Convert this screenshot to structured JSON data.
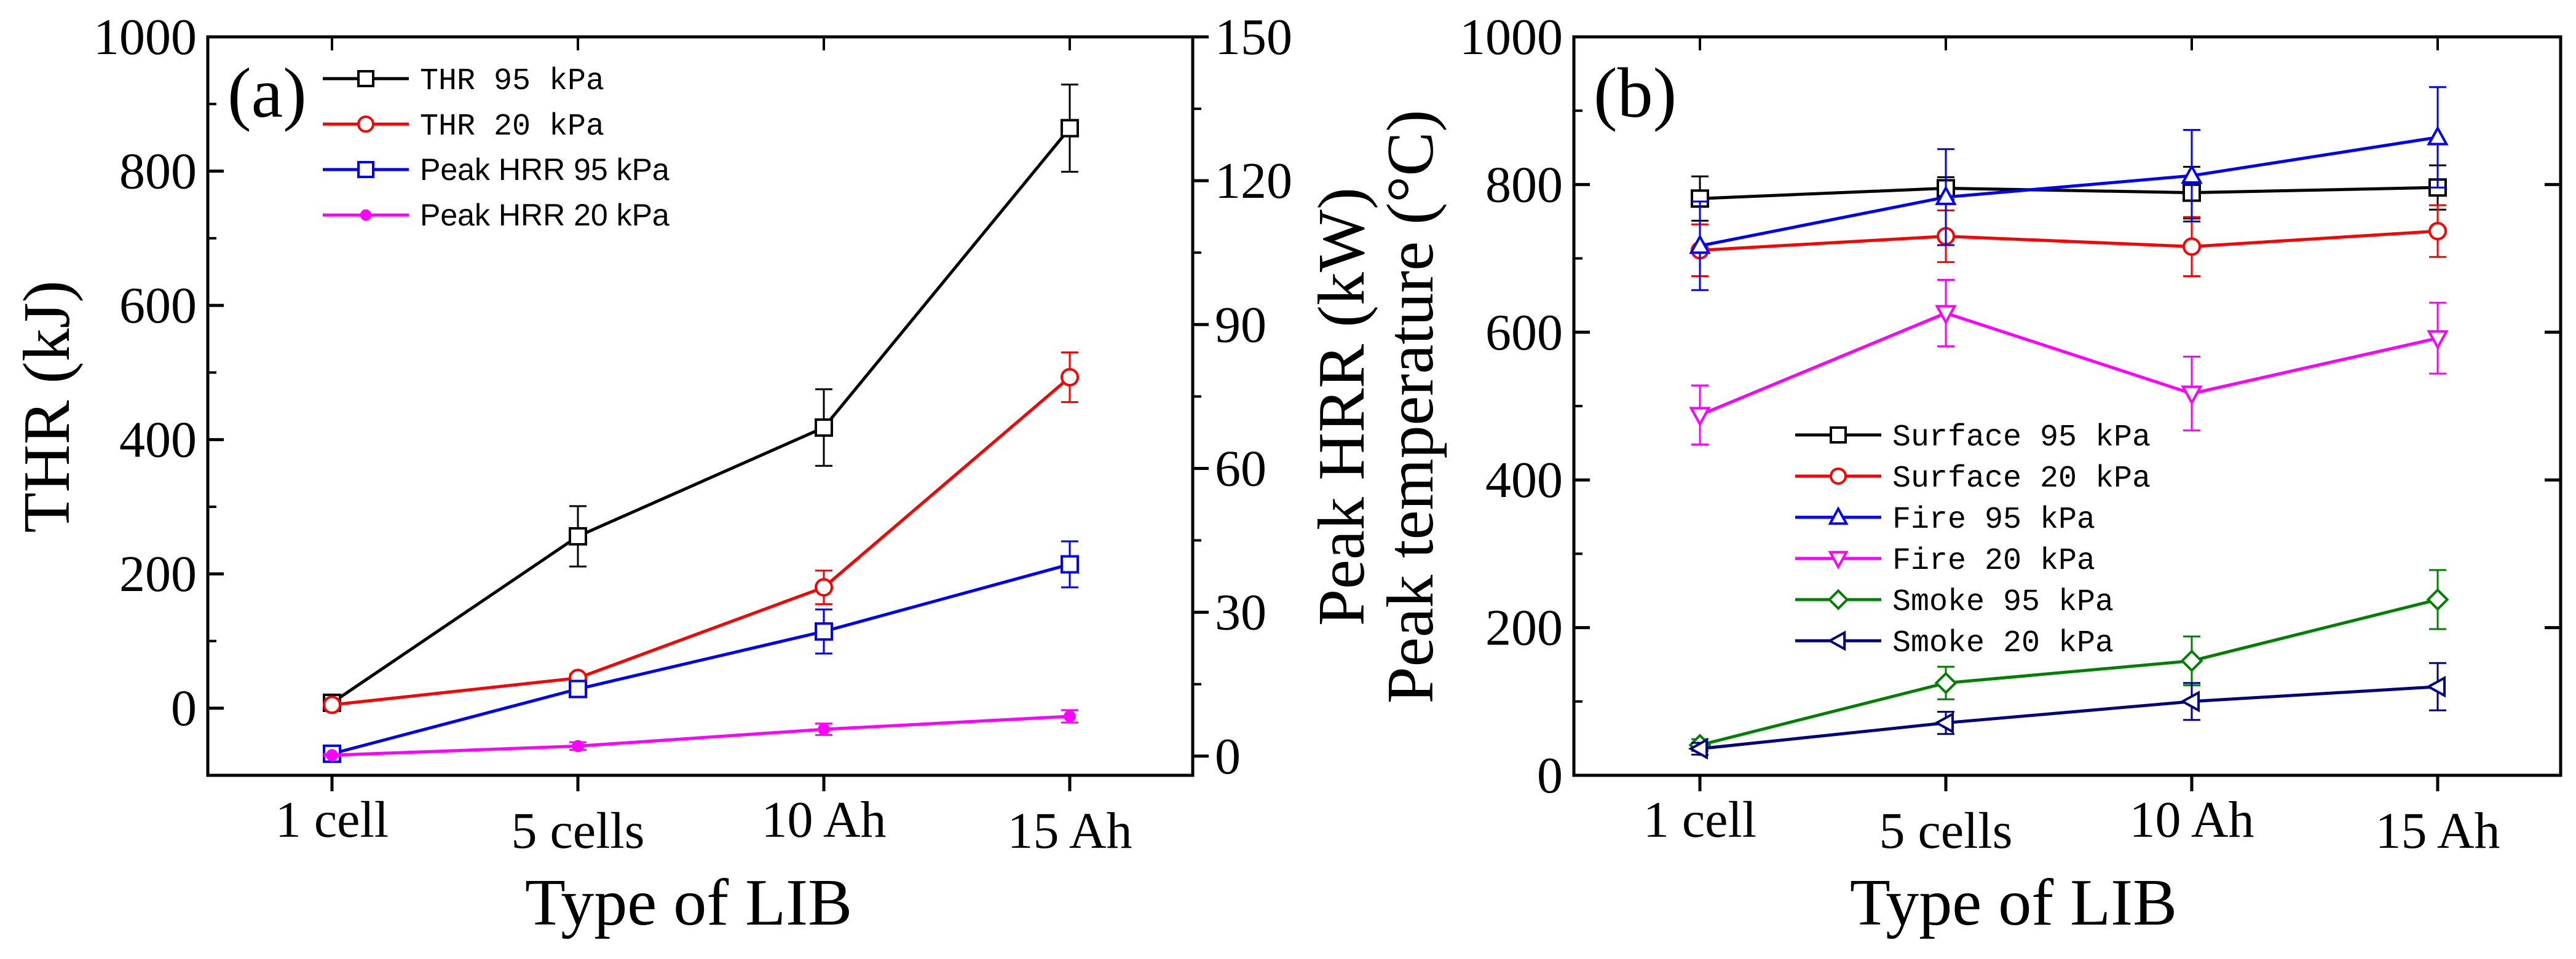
{
  "figure": {
    "colors": {
      "black": "#000000",
      "red": "#ff0000",
      "blue": "#0000ff",
      "magenta": "#ff00ff",
      "green": "#008000",
      "navy": "#000080"
    }
  },
  "chart_data": [
    {
      "type": "line",
      "panel_label": "(a)",
      "xlabel": "Type of LIB",
      "ylabel": "THR (kJ)",
      "y2label_line1": "Peak HRR (kW)",
      "y2label_line2": "Peak temperature (°C)",
      "categories": [
        "1 cell",
        "5 cells",
        "10 Ah",
        "15 Ah"
      ],
      "ylim": [
        -100,
        1000
      ],
      "yticks": [
        "0",
        "200",
        "400",
        "600",
        "800",
        "1000"
      ],
      "ytick_values": [
        0,
        200,
        400,
        600,
        800,
        1000
      ],
      "y2lim": [
        -4,
        150
      ],
      "y2ticks": [
        "0",
        "30",
        "60",
        "90",
        "120",
        "150"
      ],
      "y2tick_values": [
        0,
        30,
        60,
        90,
        120,
        150
      ],
      "legend_position": "top-left",
      "series": [
        {
          "name": "THR 95 kPa",
          "axis": "left",
          "marker": "square",
          "fill": "none",
          "color": "#000000",
          "legend_font": "serif",
          "values": [
            8,
            256,
            418,
            864
          ],
          "errors": [
            4,
            45,
            57,
            65
          ]
        },
        {
          "name": "THR 20 kPa",
          "axis": "left",
          "marker": "circle",
          "fill": "none",
          "color": "#ff0000",
          "legend_font": "serif",
          "values": [
            5,
            45,
            180,
            493
          ],
          "errors": [
            3,
            6,
            25,
            37
          ]
        },
        {
          "name": "Peak HRR 95 kPa",
          "axis": "right",
          "marker": "square",
          "fill": "none",
          "color": "#0000ff",
          "legend_font": "sans",
          "values": [
            0.5,
            14,
            26,
            40
          ],
          "errors": [
            0.4,
            1.5,
            4.6,
            4.8
          ]
        },
        {
          "name": "Peak HRR 20 kPa",
          "axis": "right",
          "marker": "circle",
          "fill": "solid",
          "color": "#ff00ff",
          "legend_font": "sans",
          "values": [
            0.2,
            2.1,
            5.6,
            8.3
          ],
          "errors": [
            0.2,
            0.8,
            1.2,
            1.3
          ]
        }
      ]
    },
    {
      "type": "line",
      "panel_label": "(b)",
      "xlabel": "Type of LIB",
      "ylabel": "",
      "categories": [
        "1 cell",
        "5 cells",
        "10 Ah",
        "15 Ah"
      ],
      "ylim": [
        0,
        1000
      ],
      "yticks": [
        "0",
        "200",
        "400",
        "600",
        "800",
        "1000"
      ],
      "ytick_values": [
        0,
        200,
        400,
        600,
        800,
        1000
      ],
      "legend_position": "center-left",
      "series": [
        {
          "name": "Surface 95 kPa",
          "marker": "square",
          "color": "#000000",
          "values": [
            781,
            795,
            789,
            796
          ],
          "errors": [
            30,
            15,
            35,
            30
          ]
        },
        {
          "name": "Surface 20 kPa",
          "marker": "circle",
          "color": "#ff0000",
          "values": [
            711,
            730,
            716,
            737
          ],
          "errors": [
            35,
            35,
            40,
            35
          ]
        },
        {
          "name": "Fire 95 kPa",
          "marker": "triangle-up",
          "color": "#0000ff",
          "values": [
            717,
            783,
            812,
            864
          ],
          "errors": [
            60,
            65,
            62,
            68
          ]
        },
        {
          "name": "Fire 20 kPa",
          "marker": "triangle-down",
          "color": "#ff00ff",
          "values": [
            488,
            626,
            517,
            592
          ],
          "errors": [
            40,
            45,
            50,
            48
          ]
        },
        {
          "name": "Smoke 95 kPa",
          "marker": "diamond",
          "color": "#008000",
          "values": [
            41,
            125,
            155,
            238
          ],
          "errors": [
            8,
            22,
            33,
            40
          ]
        },
        {
          "name": "Smoke 20 kPa",
          "marker": "triangle-left",
          "color": "#000080",
          "values": [
            36,
            71,
            100,
            120
          ],
          "errors": [
            8,
            15,
            25,
            32
          ]
        }
      ]
    }
  ]
}
